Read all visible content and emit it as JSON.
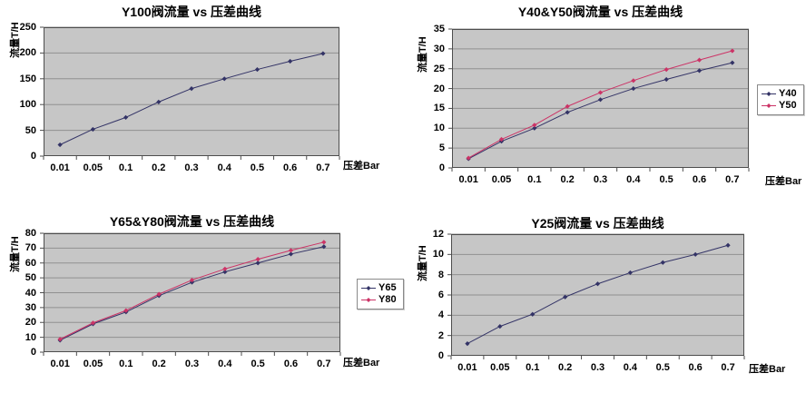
{
  "colors": {
    "page_bg": "#ffffff",
    "plot_bg": "#c6c6c6",
    "grid": "#909090",
    "axis_line": "#4d4d4d",
    "series_blue": "#333366",
    "series_pink": "#cc3366",
    "text": "#000000",
    "legend_border": "#8a8a8a"
  },
  "chart_data": [
    {
      "type": "line",
      "title": "Y100阀流量 vs 压差曲线",
      "xlabel": "压差Bar",
      "ylabel": "流量T/H",
      "categories": [
        "0.01",
        "0.05",
        "0.1",
        "0.2",
        "0.3",
        "0.4",
        "0.5",
        "0.6",
        "0.7"
      ],
      "ylim": [
        0,
        250
      ],
      "ystep": 50,
      "grid": true,
      "legend": false,
      "series": [
        {
          "name": "Y100",
          "color": "#333366",
          "values": [
            22,
            52,
            75,
            105,
            131,
            150,
            168,
            184,
            199
          ]
        }
      ]
    },
    {
      "type": "line",
      "title": "Y40&Y50阀流量 vs 压差曲线",
      "xlabel": "压差Bar",
      "ylabel": "流量T/H",
      "categories": [
        "0.01",
        "0.05",
        "0.1",
        "0.2",
        "0.3",
        "0.4",
        "0.5",
        "0.6",
        "0.7"
      ],
      "ylim": [
        0,
        35
      ],
      "ystep": 5,
      "grid": true,
      "legend": true,
      "legend_position": "right",
      "series": [
        {
          "name": "Y40",
          "color": "#333366",
          "values": [
            2.3,
            6.7,
            10,
            14,
            17.2,
            20,
            22.3,
            24.5,
            26.5
          ]
        },
        {
          "name": "Y50",
          "color": "#cc3366",
          "values": [
            2.5,
            7.2,
            10.8,
            15.5,
            19,
            22,
            24.8,
            27.2,
            29.5
          ]
        }
      ]
    },
    {
      "type": "line",
      "title": "Y65&Y80阀流量 vs 压差曲线",
      "xlabel": "压差Bar",
      "ylabel": "流量T/H",
      "categories": [
        "0.01",
        "0.05",
        "0.1",
        "0.2",
        "0.3",
        "0.4",
        "0.5",
        "0.6",
        "0.7"
      ],
      "ylim": [
        0,
        80
      ],
      "ystep": 10,
      "grid": true,
      "legend": true,
      "legend_position": "right",
      "series": [
        {
          "name": "Y65",
          "color": "#333366",
          "values": [
            8,
            19,
            27,
            38,
            47,
            54,
            60,
            66,
            71
          ]
        },
        {
          "name": "Y80",
          "color": "#cc3366",
          "values": [
            8.7,
            19.7,
            28,
            39,
            48.5,
            56,
            62.5,
            68.5,
            74
          ]
        }
      ]
    },
    {
      "type": "line",
      "title": "Y25阀流量 vs 压差曲线",
      "xlabel": "压差Bar",
      "ylabel": "流量T/H",
      "categories": [
        "0.01",
        "0.05",
        "0.1",
        "0.2",
        "0.3",
        "0.4",
        "0.5",
        "0.6",
        "0.7"
      ],
      "ylim": [
        0,
        12
      ],
      "ystep": 2,
      "grid": true,
      "legend": false,
      "series": [
        {
          "name": "Y25",
          "color": "#333366",
          "values": [
            1.2,
            2.9,
            4.1,
            5.8,
            7.1,
            8.2,
            9.2,
            10,
            10.9
          ]
        }
      ]
    }
  ]
}
